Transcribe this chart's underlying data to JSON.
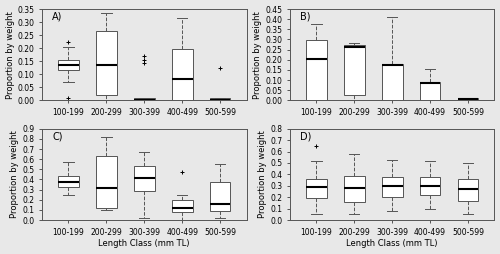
{
  "categories": [
    "100-199",
    "200-299",
    "300-399",
    "400-499",
    "500-599"
  ],
  "ylabel": "Proportion by weight",
  "xlabel": "Length Class (mm TL)",
  "panels": [
    {
      "label": "A)",
      "ylim": [
        0,
        0.35
      ],
      "yticks": [
        0.0,
        0.05,
        0.1,
        0.15,
        0.2,
        0.25,
        0.3,
        0.35
      ],
      "ytick_labels": [
        "0.00",
        "0.05",
        "0.10",
        "0.15",
        "0.20",
        "0.25",
        "0.30",
        "0.35"
      ],
      "boxes": [
        {
          "med": 0.135,
          "q1": 0.115,
          "q3": 0.155,
          "whislo": 0.07,
          "whishi": 0.205,
          "fliers": [
            0.01,
            0.225
          ]
        },
        {
          "med": 0.135,
          "q1": 0.02,
          "q3": 0.265,
          "whislo": 0.0,
          "whishi": 0.335,
          "fliers": []
        },
        {
          "med": 0.003,
          "q1": 0.0,
          "q3": 0.008,
          "whislo": 0.0,
          "whishi": 0.008,
          "fliers": [
            0.17,
            0.155,
            0.145
          ]
        },
        {
          "med": 0.08,
          "q1": 0.0,
          "q3": 0.195,
          "whislo": 0.0,
          "whishi": 0.315,
          "fliers": []
        },
        {
          "med": 0.003,
          "q1": 0.0,
          "q3": 0.008,
          "whislo": 0.0,
          "whishi": 0.008,
          "fliers": [
            0.125
          ]
        }
      ]
    },
    {
      "label": "B)",
      "ylim": [
        0,
        0.45
      ],
      "yticks": [
        0.0,
        0.05,
        0.1,
        0.15,
        0.2,
        0.25,
        0.3,
        0.35,
        0.4,
        0.45
      ],
      "ytick_labels": [
        "0.00",
        "0.05",
        "0.10",
        "0.15",
        "0.20",
        "0.25",
        "0.30",
        "0.35",
        "0.40",
        "0.45"
      ],
      "boxes": [
        {
          "med": 0.205,
          "q1": 0.003,
          "q3": 0.295,
          "whislo": 0.0,
          "whishi": 0.375,
          "fliers": []
        },
        {
          "med": 0.265,
          "q1": 0.025,
          "q3": 0.275,
          "whislo": 0.003,
          "whishi": 0.285,
          "fliers": []
        },
        {
          "med": 0.175,
          "q1": 0.003,
          "q3": 0.18,
          "whislo": 0.0,
          "whishi": 0.41,
          "fliers": []
        },
        {
          "med": 0.085,
          "q1": 0.003,
          "q3": 0.09,
          "whislo": 0.003,
          "whishi": 0.155,
          "fliers": []
        },
        {
          "med": 0.008,
          "q1": 0.0,
          "q3": 0.012,
          "whislo": 0.0,
          "whishi": 0.012,
          "fliers": []
        }
      ]
    },
    {
      "label": "C)",
      "ylim": [
        0,
        0.9
      ],
      "yticks": [
        0.0,
        0.1,
        0.2,
        0.3,
        0.4,
        0.5,
        0.6,
        0.7,
        0.8,
        0.9
      ],
      "ytick_labels": [
        "0.0",
        "0.1",
        "0.2",
        "0.3",
        "0.4",
        "0.5",
        "0.6",
        "0.7",
        "0.8",
        "0.9"
      ],
      "boxes": [
        {
          "med": 0.38,
          "q1": 0.33,
          "q3": 0.43,
          "whislo": 0.25,
          "whishi": 0.57,
          "fliers": []
        },
        {
          "med": 0.315,
          "q1": 0.12,
          "q3": 0.63,
          "whislo": 0.1,
          "whishi": 0.82,
          "fliers": []
        },
        {
          "med": 0.41,
          "q1": 0.285,
          "q3": 0.53,
          "whislo": 0.02,
          "whishi": 0.67,
          "fliers": []
        },
        {
          "med": 0.12,
          "q1": 0.08,
          "q3": 0.2,
          "whislo": 0.0,
          "whishi": 0.25,
          "fliers": [
            0.47
          ]
        },
        {
          "med": 0.155,
          "q1": 0.09,
          "q3": 0.38,
          "whislo": 0.02,
          "whishi": 0.55,
          "fliers": []
        }
      ]
    },
    {
      "label": "D)",
      "ylim": [
        0,
        0.8
      ],
      "yticks": [
        0.0,
        0.1,
        0.2,
        0.3,
        0.4,
        0.5,
        0.6,
        0.7,
        0.8
      ],
      "ytick_labels": [
        "0.0",
        "0.1",
        "0.2",
        "0.3",
        "0.4",
        "0.5",
        "0.6",
        "0.7",
        "0.8"
      ],
      "boxes": [
        {
          "med": 0.29,
          "q1": 0.19,
          "q3": 0.36,
          "whislo": 0.05,
          "whishi": 0.52,
          "fliers": [
            0.65
          ]
        },
        {
          "med": 0.28,
          "q1": 0.16,
          "q3": 0.39,
          "whislo": 0.05,
          "whishi": 0.58,
          "fliers": []
        },
        {
          "med": 0.3,
          "q1": 0.2,
          "q3": 0.38,
          "whislo": 0.08,
          "whishi": 0.53,
          "fliers": []
        },
        {
          "med": 0.3,
          "q1": 0.22,
          "q3": 0.38,
          "whislo": 0.1,
          "whishi": 0.52,
          "fliers": []
        },
        {
          "med": 0.27,
          "q1": 0.17,
          "q3": 0.36,
          "whislo": 0.05,
          "whishi": 0.5,
          "fliers": []
        }
      ]
    }
  ],
  "box_facecolor": "white",
  "box_edgecolor": "#555555",
  "median_color": "black",
  "whisker_color": "#555555",
  "cap_color": "#555555",
  "flier_color": "#555555",
  "axes_facecolor": "#e8e8e8",
  "fig_facecolor": "#e8e8e8",
  "tick_label_fontsize": 5.5,
  "axis_label_fontsize": 6.0,
  "panel_label_fontsize": 7.0,
  "linewidth": 0.7,
  "median_linewidth": 1.5,
  "box_width": 0.55
}
